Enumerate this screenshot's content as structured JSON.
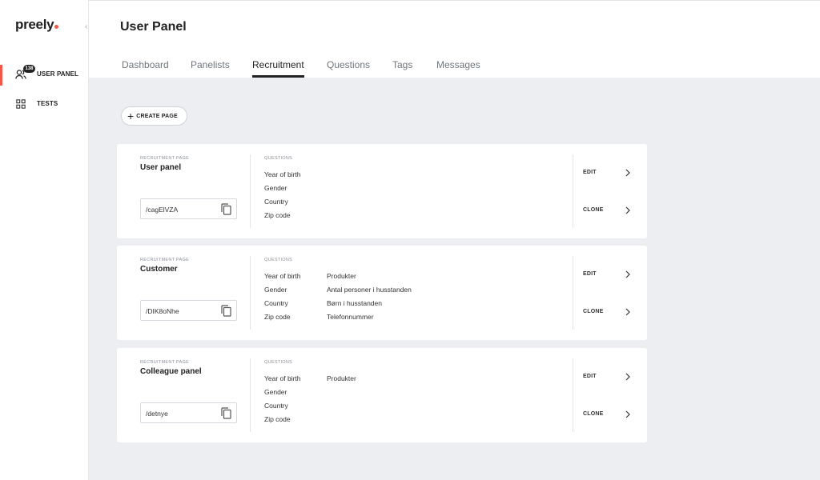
{
  "app": {
    "logo": "preely"
  },
  "sidebar": {
    "items": [
      {
        "label": "USER PANEL",
        "badge": "138",
        "icon": "users-icon",
        "active": true
      },
      {
        "label": "TESTS",
        "icon": "grid-icon",
        "active": false
      }
    ]
  },
  "header": {
    "title": "User Panel",
    "tabs": [
      {
        "label": "Dashboard",
        "active": false
      },
      {
        "label": "Panelists",
        "active": false
      },
      {
        "label": "Recruitment",
        "active": true
      },
      {
        "label": "Questions",
        "active": false
      },
      {
        "label": "Tags",
        "active": false
      },
      {
        "label": "Messages",
        "active": false
      }
    ]
  },
  "main": {
    "create_label": "CREATE PAGE",
    "page_label": "RECRUITMENT PAGE",
    "questions_label": "QUESTIONS",
    "edit_label": "EDIT",
    "clone_label": "CLONE",
    "cards": [
      {
        "name": "User panel",
        "slug": "/cagElVZA",
        "questions_col1": [
          "Year of birth",
          "Gender",
          "Country",
          "Zip code"
        ],
        "questions_col2": []
      },
      {
        "name": "Customer",
        "slug": "/DIK8oNhe",
        "questions_col1": [
          "Year of birth",
          "Gender",
          "Country",
          "Zip code"
        ],
        "questions_col2": [
          "Produkter",
          "Antal personer i husstanden",
          "Børn i husstanden",
          "Telefonnummer"
        ]
      },
      {
        "name": "Colleague panel",
        "slug": "/detnye",
        "questions_col1": [
          "Year of birth",
          "Gender",
          "Country",
          "Zip code"
        ],
        "questions_col2": [
          "Produkter"
        ]
      }
    ]
  },
  "colors": {
    "accent": "#f0584a",
    "background": "#eceef1"
  }
}
